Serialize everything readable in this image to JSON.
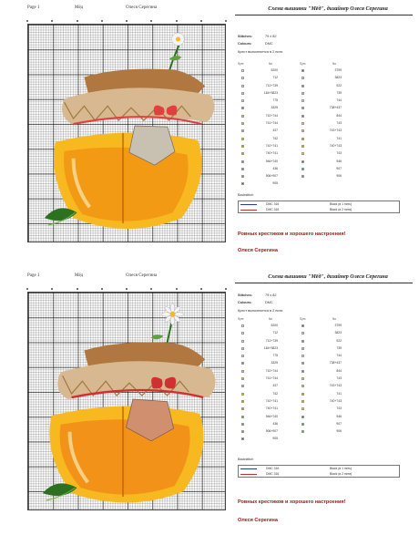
{
  "sheets": [
    {
      "header": {
        "page": "Page 1",
        "name": "Мёд",
        "author": "Олеся Серегина"
      },
      "title": "Схема вышивки \"Мёд\", дизайнер Олеся Серегина",
      "stitches_label": "Stitches:",
      "stitches_value": "79 x 82",
      "colors_label": "Colours:",
      "colors_value": "DMC",
      "note": "Крест выполняется в 2 нити",
      "legend_header": {
        "sym1": "Sym",
        "no1": "No",
        "sym2": "Sym",
        "no2": "No"
      },
      "legend_left": [
        "5200",
        "712",
        "712+739",
        "164+3823",
        "775",
        "3325",
        "742+744",
        "741+744",
        "437",
        "742",
        "742+741",
        "740+741",
        "946+740",
        "436",
        "906+907",
        "905"
      ],
      "legend_right": [
        "3799",
        "3823",
        "922",
        "739",
        "744",
        "738+437",
        "844",
        "743",
        "743+743",
        "741",
        "740+743",
        "743",
        "946",
        "907",
        "906",
        ""
      ],
      "backstitch_label": "Backstitch",
      "backstitch": [
        {
          "code": "DMC 316",
          "desc": "Black  (в 1 нить)"
        },
        {
          "code": "DMC 316",
          "desc": "Black  (в 2 нити)"
        }
      ],
      "wish": "Ровных крестиков и хорошего настроения!",
      "signature": "Олеся Серегина"
    },
    {
      "header": {
        "page": "Page 1",
        "name": "Мёд",
        "author": "Олеся Серегина"
      },
      "title": "Схема вышивки \"Мёд\", дизайнер Олеся Серегина",
      "stitches_label": "Stitches:",
      "stitches_value": "79 x 82",
      "colors_label": "Colours:",
      "colors_value": "DMC",
      "note": "Крест выполняется в 2 нити",
      "legend_header": {
        "sym1": "Sym",
        "no1": "No",
        "sym2": "Sym",
        "no2": "No"
      },
      "legend_left": [
        "5200",
        "712",
        "712+739",
        "164+3823",
        "775",
        "3325",
        "742+744",
        "741+744",
        "437",
        "742",
        "742+741",
        "740+741",
        "946+740",
        "436",
        "906+907",
        "905"
      ],
      "legend_right": [
        "3799",
        "3823",
        "922",
        "739",
        "744",
        "738+437",
        "844",
        "743",
        "743+743",
        "741",
        "740+743",
        "743",
        "946",
        "907",
        "906",
        ""
      ],
      "backstitch_label": "Backstitch",
      "backstitch": [
        {
          "code": "DMC 316",
          "desc": "Black  (в 1 нить)"
        },
        {
          "code": "DMC 316",
          "desc": "Black  (в 2 нити)"
        }
      ],
      "wish": "Ровных крестиков и хорошего настроения!",
      "signature": "Олеся Серегина"
    }
  ],
  "colors": {
    "legend_left": [
      "#f4f4f4",
      "#f6eed8",
      "#f0dcb0",
      "#d8c8b8",
      "#c8d8e8",
      "#5088c0",
      "#f8c040",
      "#f8b028",
      "#e8a050",
      "#f8b820",
      "#f09010",
      "#f08818",
      "#e06020",
      "#b07840",
      "#70b040",
      "#2c7020"
    ],
    "legend_right": [
      "#5a6a80",
      "#e0d8d0",
      "#7090b0",
      "#d8b890",
      "#f8d8e0",
      "#d09070",
      "#806838",
      "#f8d060",
      "#f0c050",
      "#f0a020",
      "#f89828",
      "#f8c848",
      "#c83818",
      "#409030",
      "#60a040",
      "#ffffff"
    ],
    "backstitch_lines": [
      "#2a3a9a",
      "#c03030"
    ]
  }
}
